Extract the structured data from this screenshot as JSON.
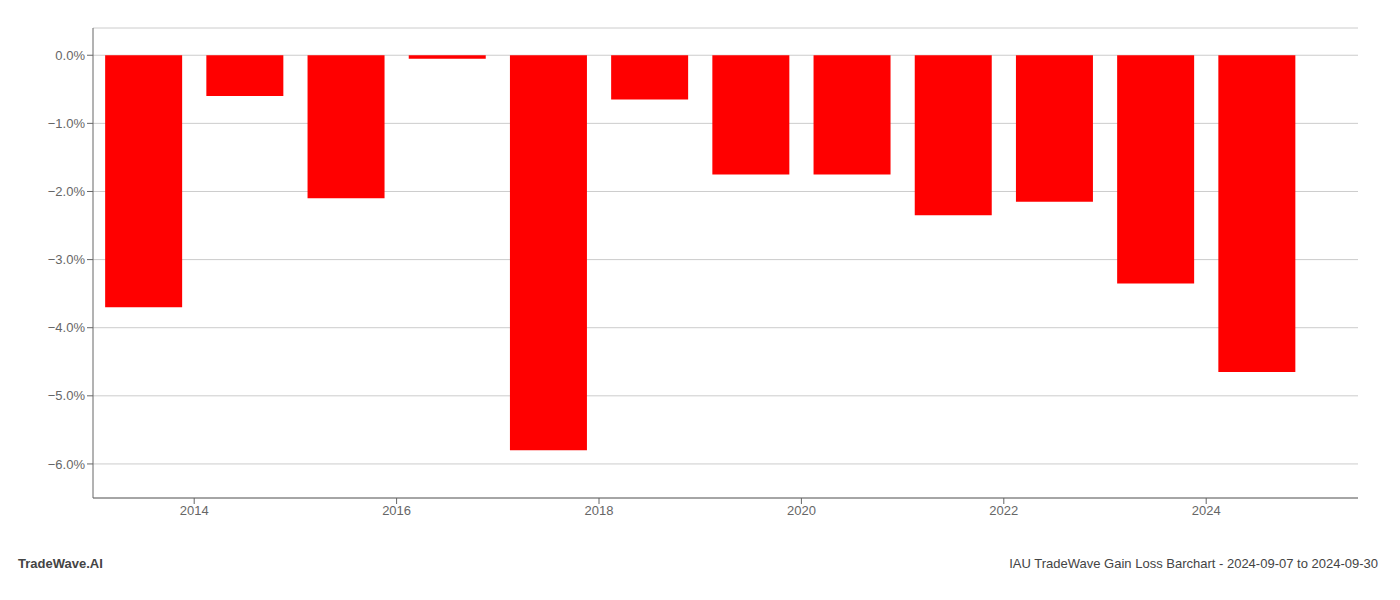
{
  "chart_data": {
    "type": "bar",
    "x": [
      2013.5,
      2014.5,
      2015.5,
      2016.5,
      2017.5,
      2018.5,
      2019.5,
      2020.5,
      2021.5,
      2022.5,
      2023.5,
      2024.5
    ],
    "values": [
      -0.037,
      -0.006,
      -0.021,
      -0.0005,
      -0.058,
      -0.0065,
      -0.0175,
      -0.0175,
      -0.0235,
      -0.0215,
      -0.0335,
      -0.0465
    ],
    "color": "#FF0000",
    "xlim": [
      2013.0,
      2025.5
    ],
    "xticks": [
      2014,
      2016,
      2018,
      2020,
      2022,
      2024
    ],
    "ylim": [
      -0.065,
      0.004
    ],
    "yticks": [
      {
        "value": 0.0,
        "label": "0.0%"
      },
      {
        "value": -0.01,
        "label": "−1.0%"
      },
      {
        "value": -0.02,
        "label": "−2.0%"
      },
      {
        "value": -0.03,
        "label": "−3.0%"
      },
      {
        "value": -0.04,
        "label": "−4.0%"
      },
      {
        "value": -0.05,
        "label": "−5.0%"
      },
      {
        "value": -0.06,
        "label": "−6.0%"
      }
    ],
    "grid": true,
    "annotations": [
      "TradeWave.AI",
      "IAU TradeWave Gain Loss Barchart - 2024-09-07 to 2024-09-30"
    ]
  }
}
